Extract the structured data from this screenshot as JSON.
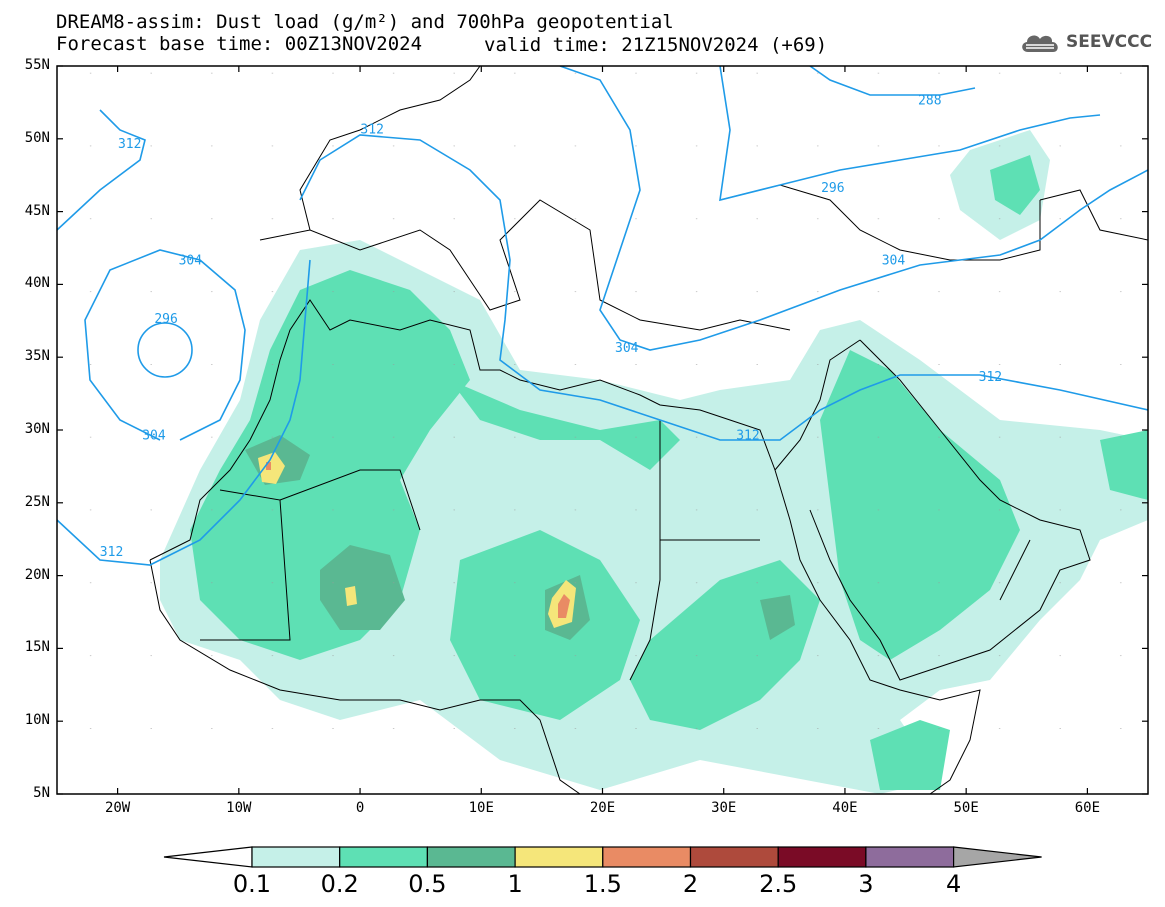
{
  "title": {
    "line1": "DREAM8-assim: Dust load (g/m²) and 700hPa geopotential",
    "line2": "Forecast base time: 00Z13NOV2024",
    "valid": "valid time: 21Z15NOV2024 (+69)"
  },
  "logo": {
    "text": "SEEVCCC",
    "icon": "cloud-icon"
  },
  "axes": {
    "lat_labels": [
      "55N",
      "50N",
      "45N",
      "40N",
      "35N",
      "30N",
      "25N",
      "20N",
      "15N",
      "10N",
      "5N"
    ],
    "lat_values": [
      55,
      50,
      45,
      40,
      35,
      30,
      25,
      20,
      15,
      10,
      5
    ],
    "lon_labels": [
      "20W",
      "10W",
      "0",
      "10E",
      "20E",
      "30E",
      "40E",
      "50E",
      "60E"
    ],
    "lon_values": [
      -20,
      -10,
      0,
      10,
      20,
      30,
      40,
      50,
      60
    ],
    "lon_range": [
      -25,
      65
    ],
    "lat_range": [
      5,
      55
    ]
  },
  "contours": {
    "color": "#1f9be8",
    "labels": [
      {
        "text": "288",
        "lon": 47,
        "lat": 52.5
      },
      {
        "text": "296",
        "lon": 39,
        "lat": 46.5
      },
      {
        "text": "304",
        "lon": 44,
        "lat": 41.5
      },
      {
        "text": "312",
        "lon": 1,
        "lat": 50.5
      },
      {
        "text": "312",
        "lon": -19,
        "lat": 49.5
      },
      {
        "text": "304",
        "lon": -14,
        "lat": 41.5
      },
      {
        "text": "296",
        "lon": -16,
        "lat": 37.5
      },
      {
        "text": "304",
        "lon": -17,
        "lat": 29.5
      },
      {
        "text": "304",
        "lon": 22,
        "lat": 35.5
      },
      {
        "text": "312",
        "lon": 32,
        "lat": 29.5
      },
      {
        "text": "312",
        "lon": 52,
        "lat": 33.5
      },
      {
        "text": "312",
        "lon": -20.5,
        "lat": 21.5
      }
    ]
  },
  "colorbar": {
    "labels": [
      "0.1",
      "0.2",
      "0.5",
      "1",
      "1.5",
      "2",
      "2.5",
      "3",
      "4"
    ],
    "colors": [
      "#c5f0e8",
      "#5ee0b4",
      "#5ab892",
      "#f5e67a",
      "#e98b64",
      "#ae4a3c",
      "#7a0b26",
      "#8e6c9c"
    ],
    "under_color": "#ffffff",
    "over_color": "#a6a6a6"
  }
}
